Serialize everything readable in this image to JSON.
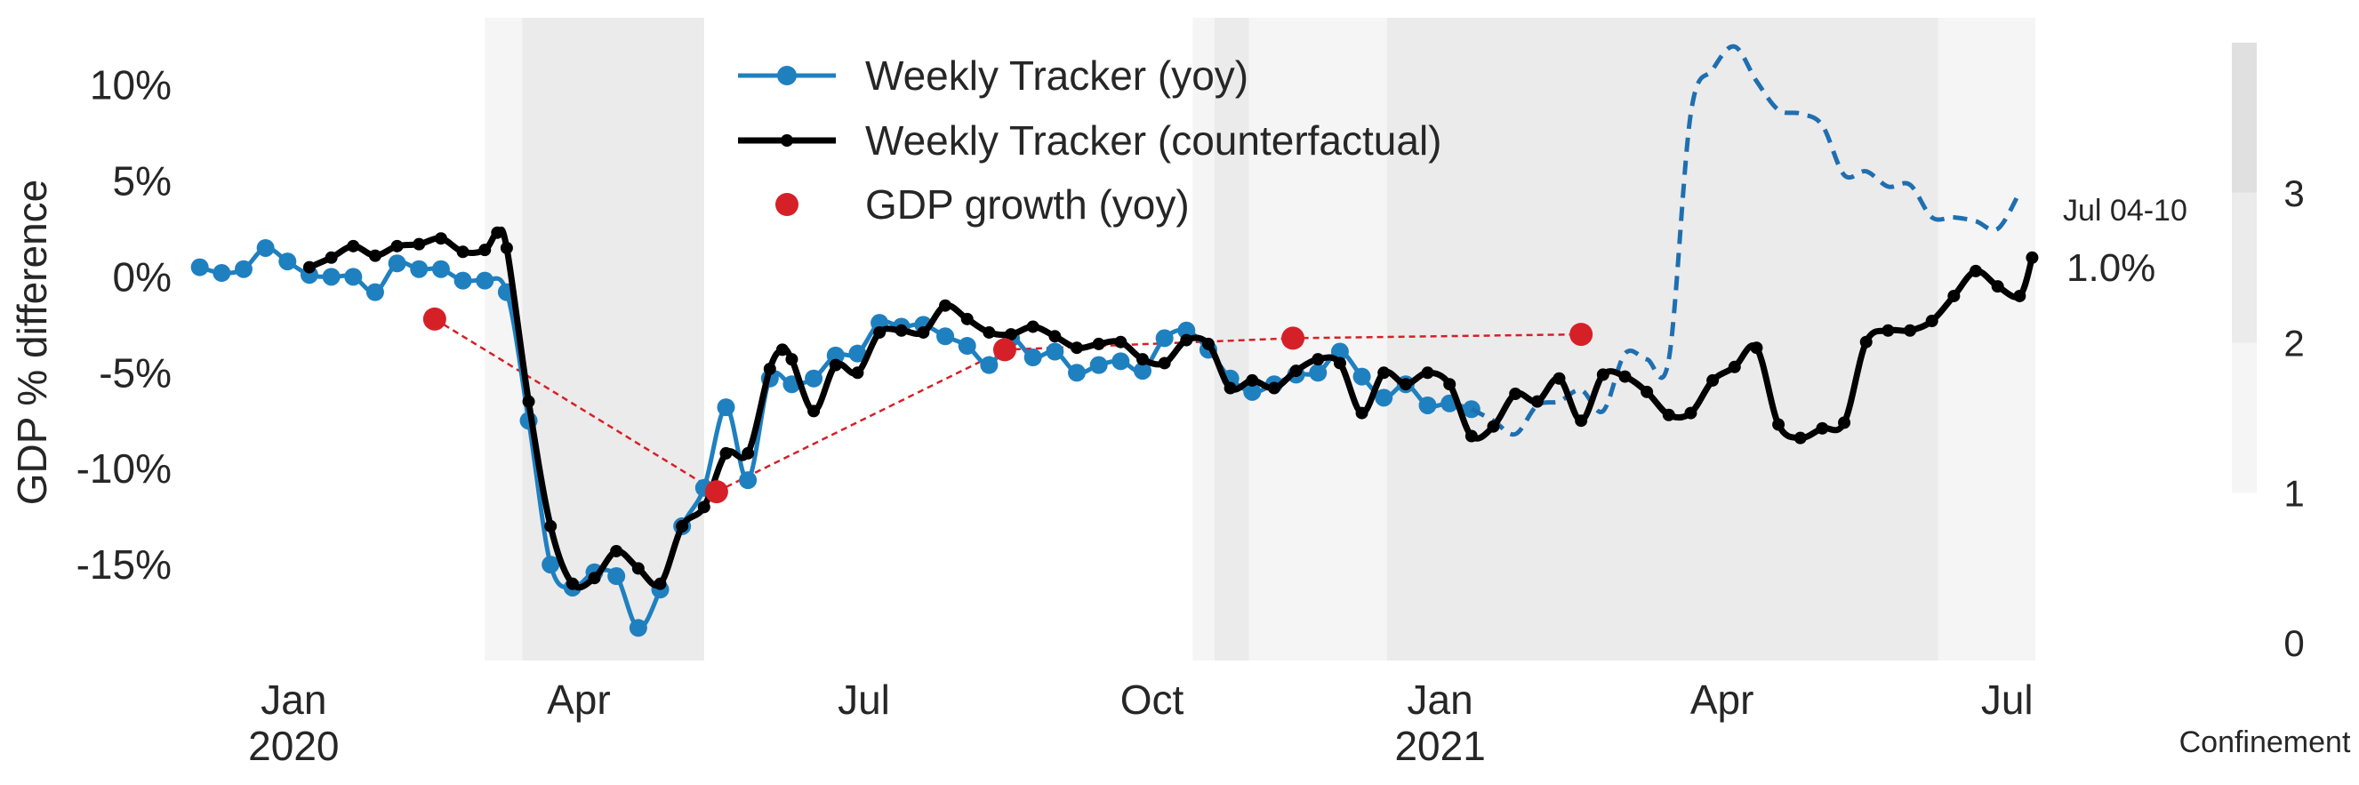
{
  "chart_data": {
    "type": "line",
    "ylabel": "GDP % difference",
    "ylim": [
      -20,
      13.5
    ],
    "xlim": [
      "2019-11-25",
      "2021-07-12"
    ],
    "yticks": [
      {
        "value": 10,
        "label": "10%"
      },
      {
        "value": 5,
        "label": "5%"
      },
      {
        "value": 0,
        "label": "0%"
      },
      {
        "value": -5,
        "label": "-5%"
      },
      {
        "value": -10,
        "label": "-10%"
      },
      {
        "value": -15,
        "label": "-15%"
      }
    ],
    "xticks": [
      {
        "date": "2020-01-01",
        "label": "Jan",
        "year": "2020"
      },
      {
        "date": "2020-04-01",
        "label": "Apr",
        "year": ""
      },
      {
        "date": "2020-07-01",
        "label": "Jul",
        "year": ""
      },
      {
        "date": "2020-10-01",
        "label": "Oct",
        "year": ""
      },
      {
        "date": "2021-01-01",
        "label": "Jan",
        "year": "2021"
      },
      {
        "date": "2021-04-01",
        "label": "Apr",
        "year": ""
      },
      {
        "date": "2021-07-01",
        "label": "Jul",
        "year": ""
      }
    ],
    "legend": {
      "position": "top-center",
      "entries": [
        "Weekly Tracker (yoy)",
        "Weekly Tracker (counterfactual)",
        "GDP growth (yoy)"
      ]
    },
    "colors": {
      "yoy": "#1f80c0",
      "yoy_dashed": "#1f6fb0",
      "counterfactual": "#000000",
      "gdp": "#d62027",
      "axis_text": "#262626"
    },
    "confinement": {
      "label": "Confinement",
      "levels": [
        {
          "start": "2020-03-02",
          "end": "2020-03-14",
          "level": 1
        },
        {
          "start": "2020-03-14",
          "end": "2020-05-11",
          "level": 2
        },
        {
          "start": "2020-10-14",
          "end": "2020-10-21",
          "level": 1
        },
        {
          "start": "2020-10-21",
          "end": "2020-11-01",
          "level": 2
        },
        {
          "start": "2020-11-01",
          "end": "2020-12-15",
          "level": 1
        },
        {
          "start": "2020-12-15",
          "end": "2021-06-09",
          "level": 2
        },
        {
          "start": "2021-06-09",
          "end": "2021-07-10",
          "level": 1
        }
      ],
      "colorbar_ticks": [
        "0",
        "1",
        "2",
        "3"
      ]
    },
    "annotations": {
      "last_label": "Jul 04-10",
      "last_value": "1.0%"
    },
    "series": [
      {
        "name": "Weekly Tracker (yoy)",
        "style": "line-marker",
        "points": [
          [
            "2019-12-02",
            0.5
          ],
          [
            "2019-12-09",
            0.2
          ],
          [
            "2019-12-16",
            0.4
          ],
          [
            "2019-12-23",
            1.5
          ],
          [
            "2019-12-30",
            0.8
          ],
          [
            "2020-01-06",
            0.1
          ],
          [
            "2020-01-13",
            0.0
          ],
          [
            "2020-01-20",
            0.0
          ],
          [
            "2020-01-27",
            -0.8
          ],
          [
            "2020-02-03",
            0.7
          ],
          [
            "2020-02-10",
            0.4
          ],
          [
            "2020-02-17",
            0.4
          ],
          [
            "2020-02-24",
            -0.2
          ],
          [
            "2020-03-02",
            -0.2
          ],
          [
            "2020-03-09",
            -0.8
          ],
          [
            "2020-03-16",
            -7.5
          ],
          [
            "2020-03-23",
            -15.0
          ],
          [
            "2020-03-30",
            -16.2
          ],
          [
            "2020-04-06",
            -15.4
          ],
          [
            "2020-04-13",
            -15.6
          ],
          [
            "2020-04-20",
            -18.3
          ],
          [
            "2020-04-27",
            -16.3
          ],
          [
            "2020-05-04",
            -13.0
          ],
          [
            "2020-05-11",
            -11.0
          ],
          [
            "2020-05-18",
            -6.8
          ],
          [
            "2020-05-25",
            -10.6
          ],
          [
            "2020-06-01",
            -5.3
          ],
          [
            "2020-06-08",
            -5.6
          ],
          [
            "2020-06-15",
            -5.3
          ],
          [
            "2020-06-22",
            -4.1
          ],
          [
            "2020-06-29",
            -4.0
          ],
          [
            "2020-07-06",
            -2.4
          ],
          [
            "2020-07-13",
            -2.6
          ],
          [
            "2020-07-20",
            -2.5
          ],
          [
            "2020-07-27",
            -3.1
          ],
          [
            "2020-08-03",
            -3.6
          ],
          [
            "2020-08-10",
            -4.6
          ],
          [
            "2020-08-17",
            -3.2
          ],
          [
            "2020-08-24",
            -4.2
          ],
          [
            "2020-08-31",
            -3.9
          ],
          [
            "2020-09-07",
            -5.0
          ],
          [
            "2020-09-14",
            -4.6
          ],
          [
            "2020-09-21",
            -4.4
          ],
          [
            "2020-09-28",
            -4.9
          ],
          [
            "2020-10-05",
            -3.2
          ],
          [
            "2020-10-12",
            -2.8
          ],
          [
            "2020-10-19",
            -3.8
          ],
          [
            "2020-10-26",
            -5.3
          ],
          [
            "2020-11-02",
            -6.0
          ],
          [
            "2020-11-09",
            -5.6
          ],
          [
            "2020-11-16",
            -5.1
          ],
          [
            "2020-11-23",
            -5.0
          ],
          [
            "2020-11-30",
            -3.9
          ],
          [
            "2020-12-07",
            -5.2
          ],
          [
            "2020-12-14",
            -6.3
          ],
          [
            "2020-12-21",
            -5.6
          ],
          [
            "2020-12-28",
            -6.7
          ],
          [
            "2021-01-04",
            -6.6
          ],
          [
            "2021-01-11",
            -6.9
          ]
        ]
      },
      {
        "name": "Weekly Tracker (yoy) continuation",
        "style": "dashed",
        "points": [
          [
            "2021-01-11",
            -6.9
          ],
          [
            "2021-01-18",
            -7.5
          ],
          [
            "2021-01-25",
            -8.2
          ],
          [
            "2021-02-01",
            -6.7
          ],
          [
            "2021-02-08",
            -6.5
          ],
          [
            "2021-02-15",
            -5.9
          ],
          [
            "2021-02-22",
            -7.0
          ],
          [
            "2021-03-01",
            -4.0
          ],
          [
            "2021-03-08",
            -4.3
          ],
          [
            "2021-03-15",
            -4.3
          ],
          [
            "2021-03-22",
            8.5
          ],
          [
            "2021-03-29",
            10.8
          ],
          [
            "2021-04-05",
            12.0
          ],
          [
            "2021-04-12",
            10.2
          ],
          [
            "2021-04-19",
            8.7
          ],
          [
            "2021-04-26",
            8.5
          ],
          [
            "2021-05-03",
            7.9
          ],
          [
            "2021-05-10",
            5.3
          ],
          [
            "2021-05-17",
            5.5
          ],
          [
            "2021-05-24",
            4.7
          ],
          [
            "2021-05-31",
            4.8
          ],
          [
            "2021-06-07",
            3.1
          ],
          [
            "2021-06-14",
            3.1
          ],
          [
            "2021-06-21",
            2.9
          ],
          [
            "2021-06-28",
            2.5
          ],
          [
            "2021-07-05",
            4.4
          ]
        ]
      },
      {
        "name": "Weekly Tracker (counterfactual)",
        "style": "line-marker",
        "points": [
          [
            "2020-01-06",
            0.5
          ],
          [
            "2020-01-13",
            1.0
          ],
          [
            "2020-01-20",
            1.6
          ],
          [
            "2020-01-27",
            1.1
          ],
          [
            "2020-02-03",
            1.6
          ],
          [
            "2020-02-10",
            1.7
          ],
          [
            "2020-02-17",
            2.0
          ],
          [
            "2020-02-24",
            1.3
          ],
          [
            "2020-03-02",
            1.4
          ],
          [
            "2020-03-06",
            2.3
          ],
          [
            "2020-03-09",
            1.5
          ],
          [
            "2020-03-16",
            -6.5
          ],
          [
            "2020-03-23",
            -13.0
          ],
          [
            "2020-03-30",
            -16.0
          ],
          [
            "2020-04-06",
            -15.7
          ],
          [
            "2020-04-13",
            -14.3
          ],
          [
            "2020-04-20",
            -15.2
          ],
          [
            "2020-04-27",
            -16.0
          ],
          [
            "2020-05-04",
            -13.0
          ],
          [
            "2020-05-11",
            -12.0
          ],
          [
            "2020-05-18",
            -9.2
          ],
          [
            "2020-05-25",
            -9.2
          ],
          [
            "2020-06-01",
            -4.8
          ],
          [
            "2020-06-05",
            -3.8
          ],
          [
            "2020-06-08",
            -4.3
          ],
          [
            "2020-06-15",
            -7.0
          ],
          [
            "2020-06-22",
            -4.6
          ],
          [
            "2020-06-29",
            -5.0
          ],
          [
            "2020-07-06",
            -2.9
          ],
          [
            "2020-07-13",
            -2.8
          ],
          [
            "2020-07-20",
            -2.9
          ],
          [
            "2020-07-27",
            -1.5
          ],
          [
            "2020-08-03",
            -2.2
          ],
          [
            "2020-08-10",
            -2.9
          ],
          [
            "2020-08-17",
            -3.0
          ],
          [
            "2020-08-24",
            -2.6
          ],
          [
            "2020-08-31",
            -3.1
          ],
          [
            "2020-09-07",
            -3.7
          ],
          [
            "2020-09-14",
            -3.5
          ],
          [
            "2020-09-21",
            -3.4
          ],
          [
            "2020-09-28",
            -4.3
          ],
          [
            "2020-10-05",
            -4.5
          ],
          [
            "2020-10-12",
            -3.3
          ],
          [
            "2020-10-19",
            -3.5
          ],
          [
            "2020-10-26",
            -5.8
          ],
          [
            "2020-11-02",
            -5.4
          ],
          [
            "2020-11-09",
            -5.8
          ],
          [
            "2020-11-16",
            -4.9
          ],
          [
            "2020-11-23",
            -4.3
          ],
          [
            "2020-11-30",
            -4.5
          ],
          [
            "2020-12-07",
            -7.1
          ],
          [
            "2020-12-14",
            -5.0
          ],
          [
            "2020-12-21",
            -5.6
          ],
          [
            "2020-12-28",
            -5.0
          ],
          [
            "2021-01-04",
            -5.6
          ],
          [
            "2021-01-11",
            -8.3
          ],
          [
            "2021-01-18",
            -7.8
          ],
          [
            "2021-01-25",
            -6.1
          ],
          [
            "2021-02-01",
            -6.5
          ],
          [
            "2021-02-08",
            -5.3
          ],
          [
            "2021-02-15",
            -7.5
          ],
          [
            "2021-02-22",
            -5.1
          ],
          [
            "2021-03-01",
            -5.2
          ],
          [
            "2021-03-08",
            -6.0
          ],
          [
            "2021-03-15",
            -7.2
          ],
          [
            "2021-03-22",
            -7.1
          ],
          [
            "2021-03-29",
            -5.4
          ],
          [
            "2021-04-05",
            -4.7
          ],
          [
            "2021-04-12",
            -3.7
          ],
          [
            "2021-04-19",
            -7.7
          ],
          [
            "2021-04-26",
            -8.4
          ],
          [
            "2021-05-03",
            -7.9
          ],
          [
            "2021-05-10",
            -7.6
          ],
          [
            "2021-05-17",
            -3.4
          ],
          [
            "2021-05-24",
            -2.8
          ],
          [
            "2021-05-31",
            -2.8
          ],
          [
            "2021-06-07",
            -2.3
          ],
          [
            "2021-06-14",
            -1.0
          ],
          [
            "2021-06-21",
            0.3
          ],
          [
            "2021-06-28",
            -0.5
          ],
          [
            "2021-07-05",
            -1.0
          ],
          [
            "2021-07-09",
            1.0
          ]
        ]
      },
      {
        "name": "GDP growth (yoy)",
        "style": "dashed-marker",
        "points": [
          [
            "2020-02-15",
            -2.2
          ],
          [
            "2020-05-15",
            -11.2
          ],
          [
            "2020-08-15",
            -3.8
          ],
          [
            "2020-11-15",
            -3.2
          ],
          [
            "2021-02-15",
            -3.0
          ]
        ]
      }
    ]
  }
}
